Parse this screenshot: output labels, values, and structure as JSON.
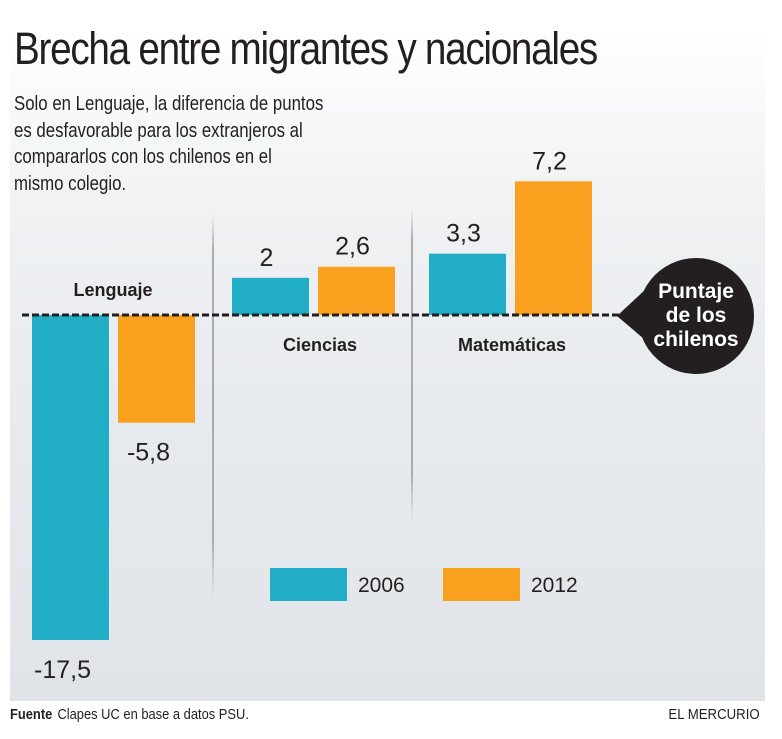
{
  "header": {
    "title": "Brecha entre migrantes y nacionales",
    "subtitle_lines": [
      "Solo en Lenguaje, la diferencia de puntos",
      "es desfavorable para los extranjeros al",
      "compararlos con los chilenos en el",
      "mismo colegio."
    ]
  },
  "chart_data": {
    "type": "bar",
    "title": "Brecha entre migrantes y nacionales",
    "xlabel": "",
    "ylabel": "",
    "categories": [
      "Lenguaje",
      "Ciencias",
      "Matemáticas"
    ],
    "series": [
      {
        "name": "2006",
        "color": "#22adc7",
        "values": [
          -17.5,
          2,
          3.3
        ],
        "labels": [
          "-17,5",
          "2",
          "3,3"
        ]
      },
      {
        "name": "2012",
        "color": "#f9a11f",
        "values": [
          -5.8,
          2.6,
          7.2
        ],
        "labels": [
          "-5,8",
          "2,6",
          "7,2"
        ]
      }
    ],
    "baseline": {
      "value": 0,
      "label_lines": [
        "Puntaje",
        "de los",
        "chilenos"
      ],
      "style": "dashed"
    },
    "ylim": [
      -17.5,
      7.2
    ],
    "grid": false,
    "legend": {
      "position": "bottom-center",
      "entries": [
        "2006",
        "2012"
      ]
    }
  },
  "footer": {
    "source_label": "Fuente",
    "source_text": "Clapes UC en base a datos PSU.",
    "brand": "EL MERCURIO"
  }
}
